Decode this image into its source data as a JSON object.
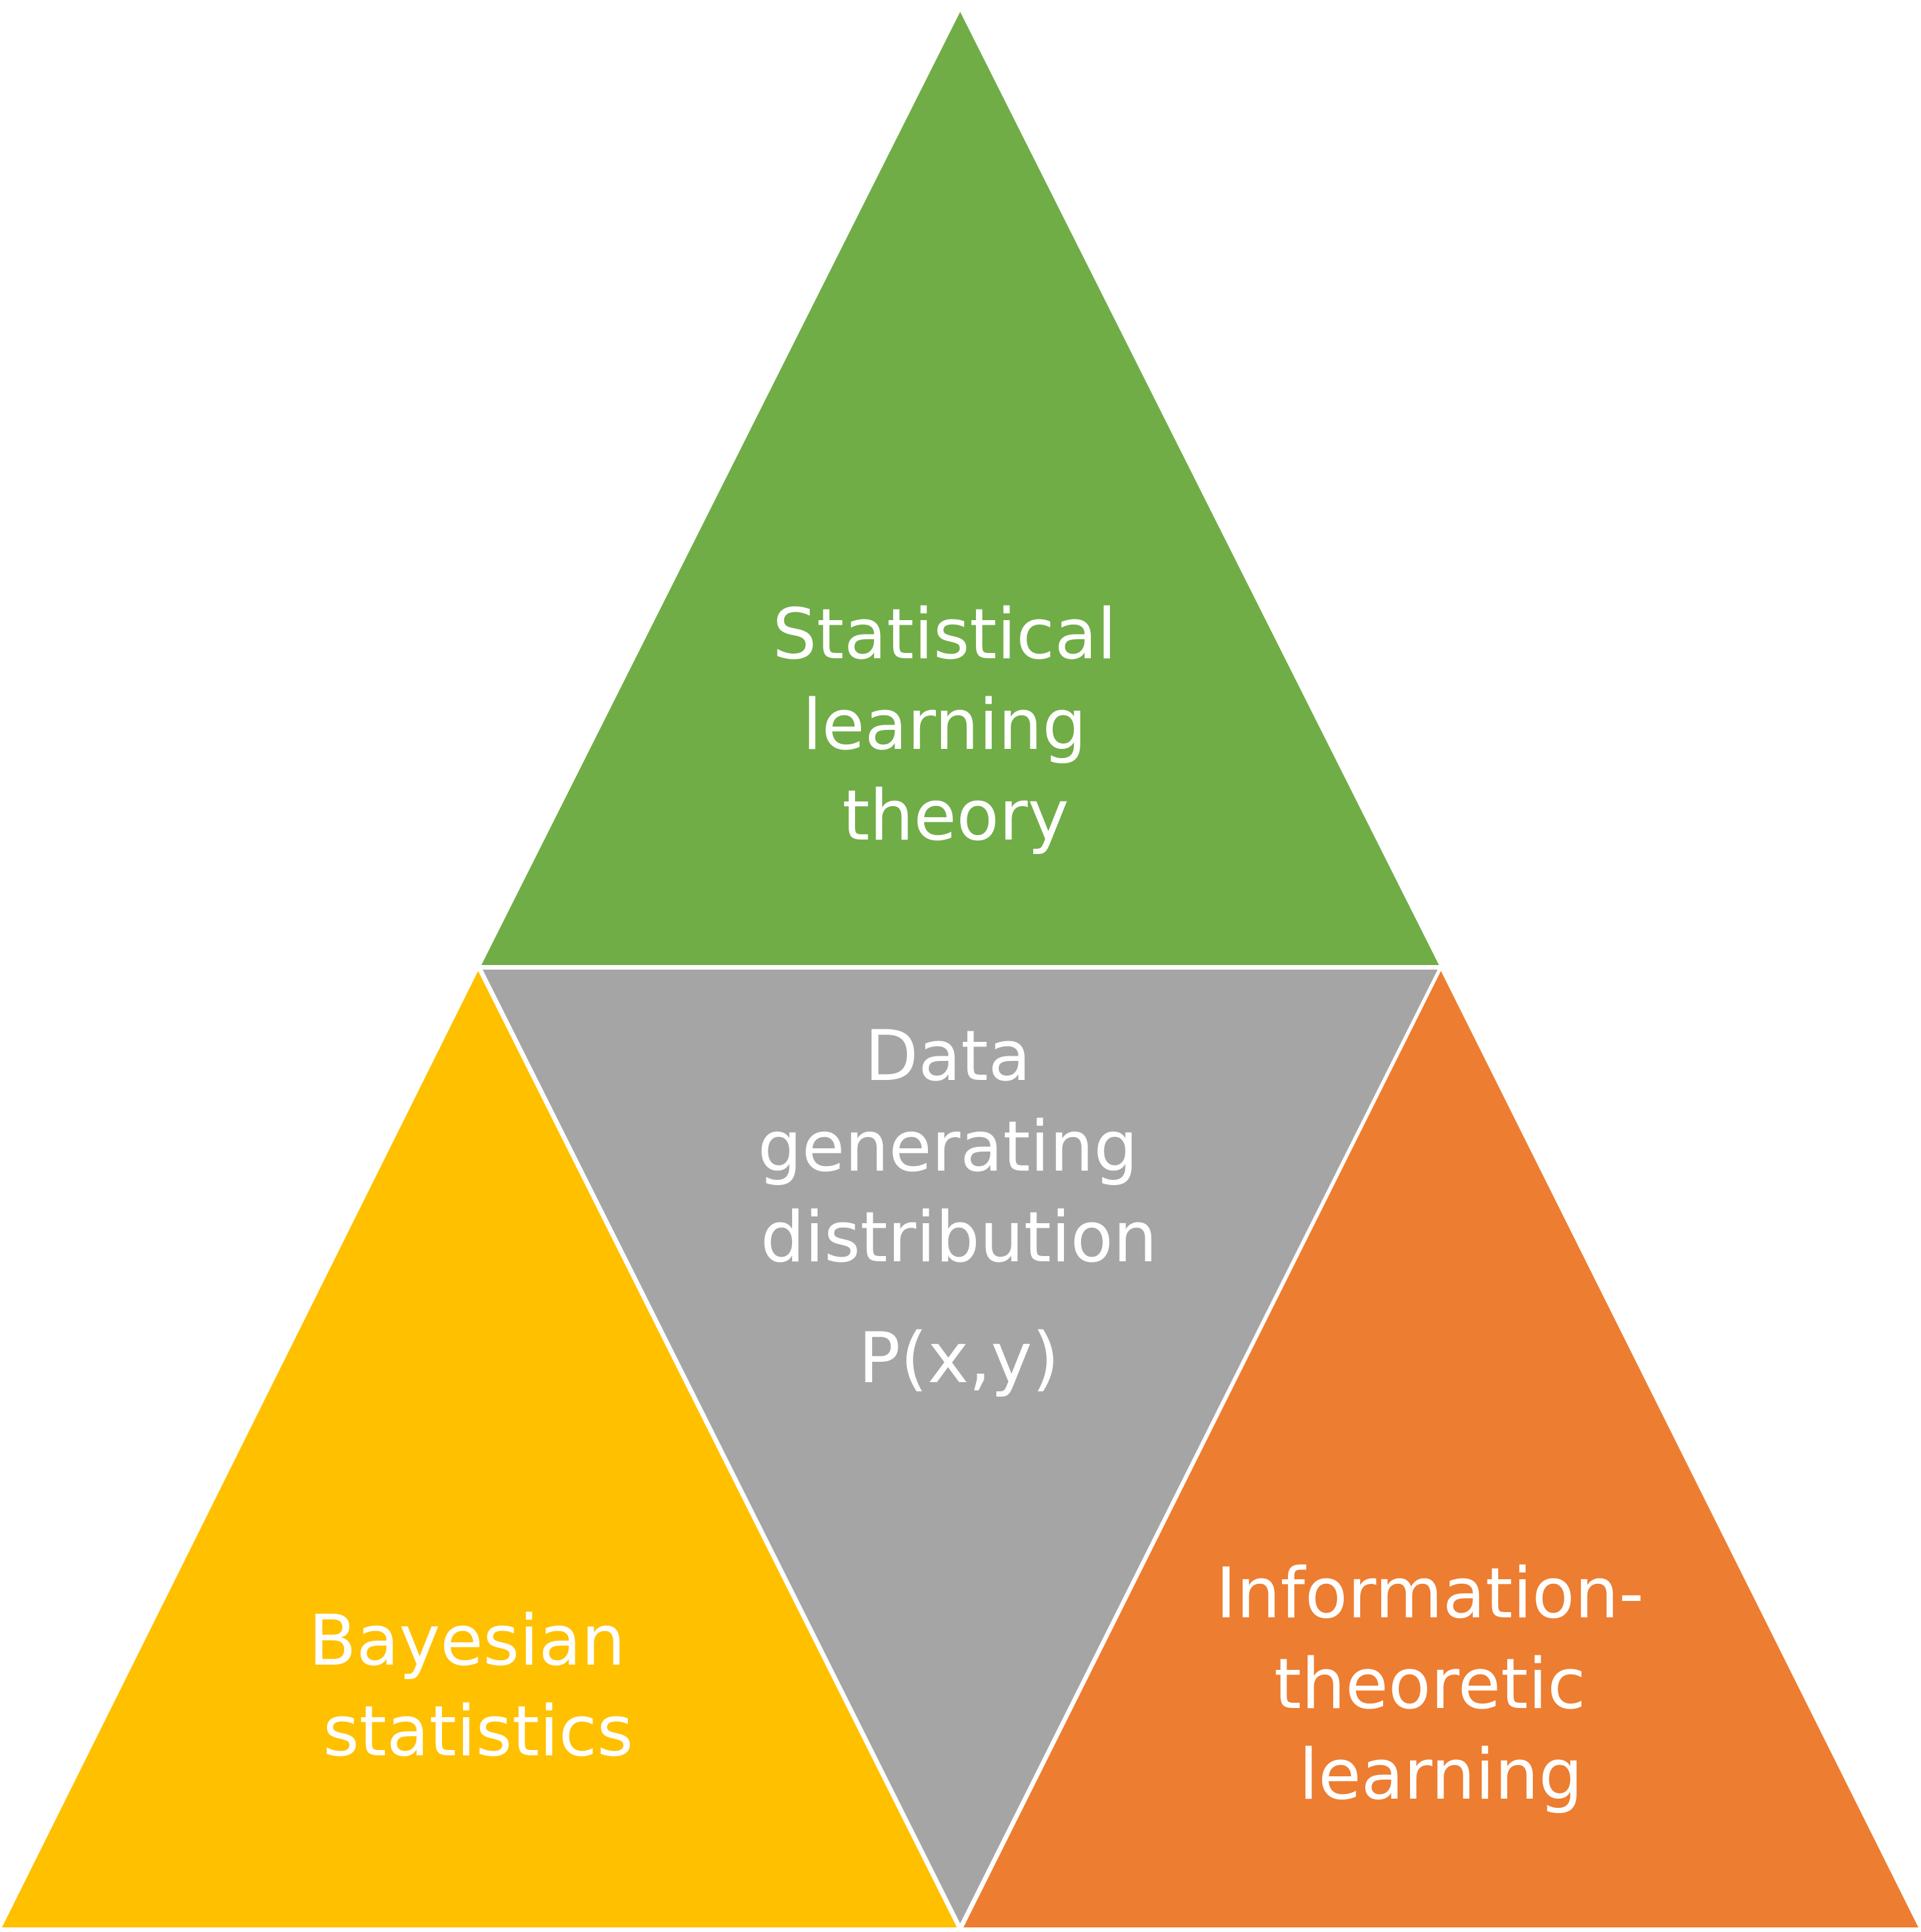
{
  "diagram": {
    "top": {
      "lines": [
        "Statistical",
        "learning",
        "theory"
      ],
      "color": "#70ad47"
    },
    "center": {
      "lines": [
        "Data",
        "generating",
        "distribution"
      ],
      "formula": "P(x,y)",
      "color": "#a5a5a5"
    },
    "left": {
      "lines": [
        "Bayesian",
        "statistics"
      ],
      "color": "#ffc000"
    },
    "right": {
      "lines": [
        "Information-",
        "theoretic",
        "learning"
      ],
      "color": "#ed7d31"
    },
    "text_color": "#ffffff"
  }
}
